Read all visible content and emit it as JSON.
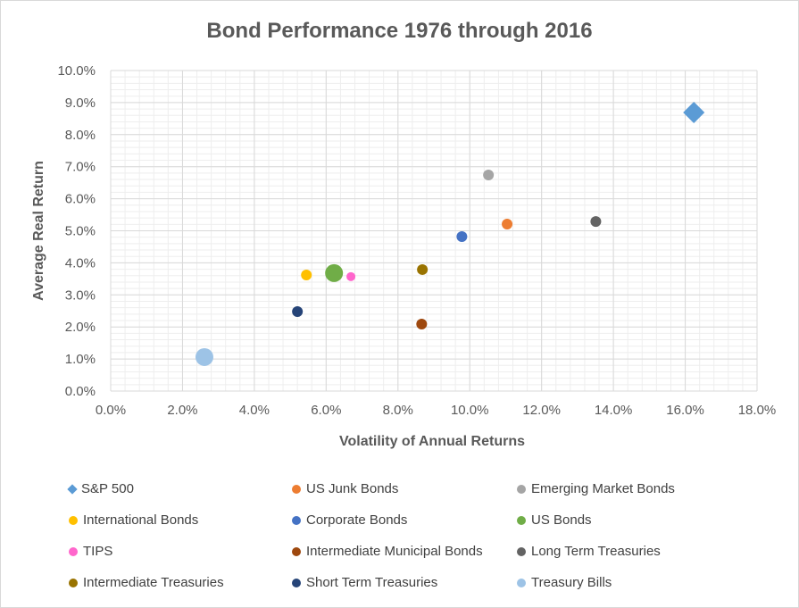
{
  "chart_data": {
    "type": "scatter",
    "title": "Bond Performance 1976 through 2016",
    "xlabel": "Volatility of Annual Returns",
    "ylabel": "Average Real Return",
    "xlim": [
      0,
      18
    ],
    "ylim": [
      0,
      10
    ],
    "xticks": [
      "0.0%",
      "2.0%",
      "4.0%",
      "6.0%",
      "8.0%",
      "10.0%",
      "12.0%",
      "14.0%",
      "16.0%",
      "18.0%"
    ],
    "yticks": [
      "0.0%",
      "1.0%",
      "2.0%",
      "3.0%",
      "4.0%",
      "5.0%",
      "6.0%",
      "7.0%",
      "8.0%",
      "9.0%",
      "10.0%"
    ],
    "grid": "major and minor",
    "legend_placement": "bottom",
    "series": [
      {
        "name": "S&P 500",
        "x": 16.24,
        "y": 8.69,
        "color": "#5B9BD5",
        "marker": "diamond",
        "size": "large"
      },
      {
        "name": "US Junk Bonds",
        "x": 11.04,
        "y": 5.21,
        "color": "#ED7D31",
        "marker": "circle",
        "size": "medium"
      },
      {
        "name": "Emerging Market Bonds",
        "x": 10.52,
        "y": 6.74,
        "color": "#A5A5A5",
        "marker": "circle",
        "size": "medium"
      },
      {
        "name": "International Bonds",
        "x": 5.45,
        "y": 3.62,
        "color": "#FFC000",
        "marker": "circle",
        "size": "medium"
      },
      {
        "name": "Corporate Bonds",
        "x": 9.78,
        "y": 4.82,
        "color": "#4472C4",
        "marker": "circle",
        "size": "medium"
      },
      {
        "name": "US Bonds",
        "x": 6.22,
        "y": 3.68,
        "color": "#70AD47",
        "marker": "circle",
        "size": "large"
      },
      {
        "name": "TIPS",
        "x": 6.69,
        "y": 3.57,
        "color": "#FF66CC",
        "marker": "circle",
        "size": "small"
      },
      {
        "name": "Intermediate Municipal Bonds",
        "x": 8.66,
        "y": 2.09,
        "color": "#9E480E",
        "marker": "circle",
        "size": "medium"
      },
      {
        "name": "Long Term Treasuries",
        "x": 13.51,
        "y": 5.29,
        "color": "#636363",
        "marker": "circle",
        "size": "medium"
      },
      {
        "name": "Intermediate Treasuries",
        "x": 8.68,
        "y": 3.79,
        "color": "#997300",
        "marker": "circle",
        "size": "medium"
      },
      {
        "name": "Short Term Treasuries",
        "x": 5.2,
        "y": 2.48,
        "color": "#264478",
        "marker": "circle",
        "size": "medium"
      },
      {
        "name": "Treasury Bills",
        "x": 2.61,
        "y": 1.06,
        "color": "#9DC3E6",
        "marker": "circle",
        "size": "large"
      }
    ]
  }
}
